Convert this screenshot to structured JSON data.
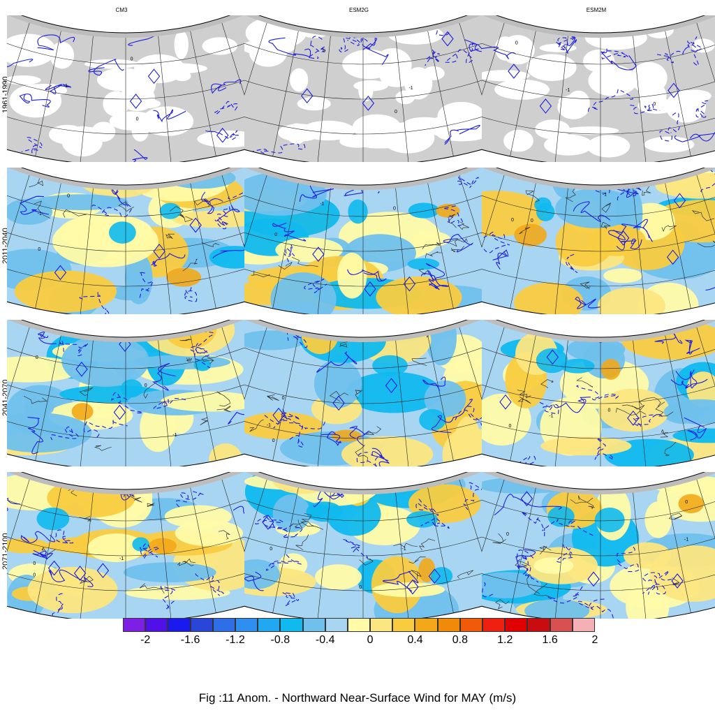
{
  "columns": [
    "CM3",
    "ESM2G",
    "ESM2M"
  ],
  "rows": [
    "1961-1990",
    "2011-2040",
    "2041-2070",
    "2071-2100"
  ],
  "colorbar": {
    "colors": [
      "#7e1fe6",
      "#5010e8",
      "#1a1aef",
      "#2a46d8",
      "#2e6ee6",
      "#2f8ff0",
      "#20a9f0",
      "#10b9ee",
      "#70c0ec",
      "#a8d6f2",
      "#fffba8",
      "#fce680",
      "#f9cc40",
      "#f2a818",
      "#f08a08",
      "#f05a08",
      "#f02010",
      "#e00000",
      "#c80c10",
      "#d85050",
      "#f4b0b4"
    ],
    "tick_labels": [
      "-2",
      "-1.6",
      "-1.2",
      "-0.8",
      "-0.4",
      "0",
      "0.4",
      "0.8",
      "1.2",
      "1.6",
      "2"
    ],
    "ticks": [
      -2,
      -1.6,
      -1.2,
      -0.8,
      -0.4,
      0,
      0.4,
      0.8,
      1.2,
      1.6,
      2
    ]
  },
  "contour_labels": {
    "zero": "0",
    "minus_one": "-1",
    "plus_one": "1"
  },
  "caption": "Fig :11  Anom.  - Northward Near-Surface Wind for MAY (m/s)"
}
